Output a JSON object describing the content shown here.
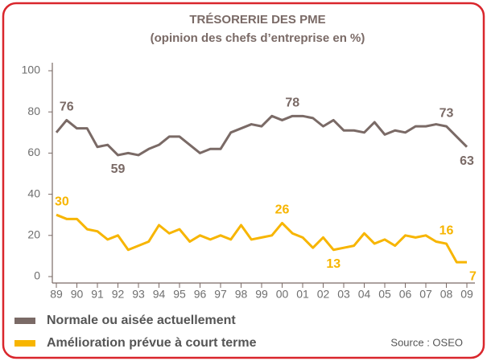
{
  "chart_data": {
    "type": "line",
    "title": "TRÉSORERIE DES PME",
    "subtitle": "(opinion des chefs d’entreprise en %)",
    "source": "Source : OSEO",
    "categories": [
      "89",
      null,
      "90",
      null,
      "91",
      null,
      "92",
      null,
      "93",
      null,
      "94",
      null,
      "95",
      null,
      "96",
      null,
      "97",
      null,
      "98",
      null,
      "99",
      null,
      "00",
      null,
      "01",
      null,
      "02",
      null,
      "03",
      null,
      "04",
      null,
      "05",
      null,
      "06",
      null,
      "07",
      null,
      "08",
      null,
      "09"
    ],
    "series": [
      {
        "name": "Normale ou aisée actuellement",
        "color": "#7a6a66",
        "values": [
          70,
          76,
          72,
          72,
          63,
          64,
          59,
          60,
          59,
          62,
          64,
          68,
          68,
          64,
          60,
          62,
          62,
          70,
          72,
          74,
          73,
          78,
          76,
          78,
          78,
          77,
          73,
          76,
          71,
          71,
          70,
          75,
          69,
          71,
          70,
          73,
          73,
          74,
          73,
          68,
          63
        ],
        "value_labels": [
          null,
          "76",
          null,
          null,
          null,
          null,
          "59",
          null,
          null,
          null,
          null,
          null,
          null,
          null,
          null,
          null,
          null,
          null,
          null,
          null,
          null,
          null,
          null,
          "78",
          null,
          null,
          null,
          null,
          null,
          null,
          null,
          null,
          null,
          null,
          null,
          null,
          null,
          null,
          "73",
          null,
          "63"
        ]
      },
      {
        "name": "Amélioration prévue à court terme",
        "color": "#f7b500",
        "values": [
          30,
          28,
          28,
          23,
          22,
          18,
          20,
          13,
          15,
          17,
          25,
          21,
          23,
          17,
          20,
          18,
          20,
          18,
          25,
          18,
          19,
          20,
          26,
          21,
          19,
          14,
          19,
          13,
          14,
          15,
          21,
          16,
          18,
          15,
          20,
          19,
          20,
          17,
          16,
          7,
          7
        ],
        "value_labels": [
          "30",
          null,
          null,
          null,
          null,
          null,
          null,
          null,
          null,
          null,
          null,
          null,
          null,
          null,
          null,
          null,
          null,
          null,
          null,
          null,
          null,
          null,
          "26",
          null,
          null,
          null,
          null,
          "13",
          null,
          null,
          null,
          null,
          null,
          null,
          null,
          null,
          null,
          null,
          "16",
          null,
          "7"
        ]
      }
    ],
    "ylim": [
      0,
      100
    ],
    "yticks": [
      0,
      20,
      40,
      60,
      80,
      100
    ]
  }
}
